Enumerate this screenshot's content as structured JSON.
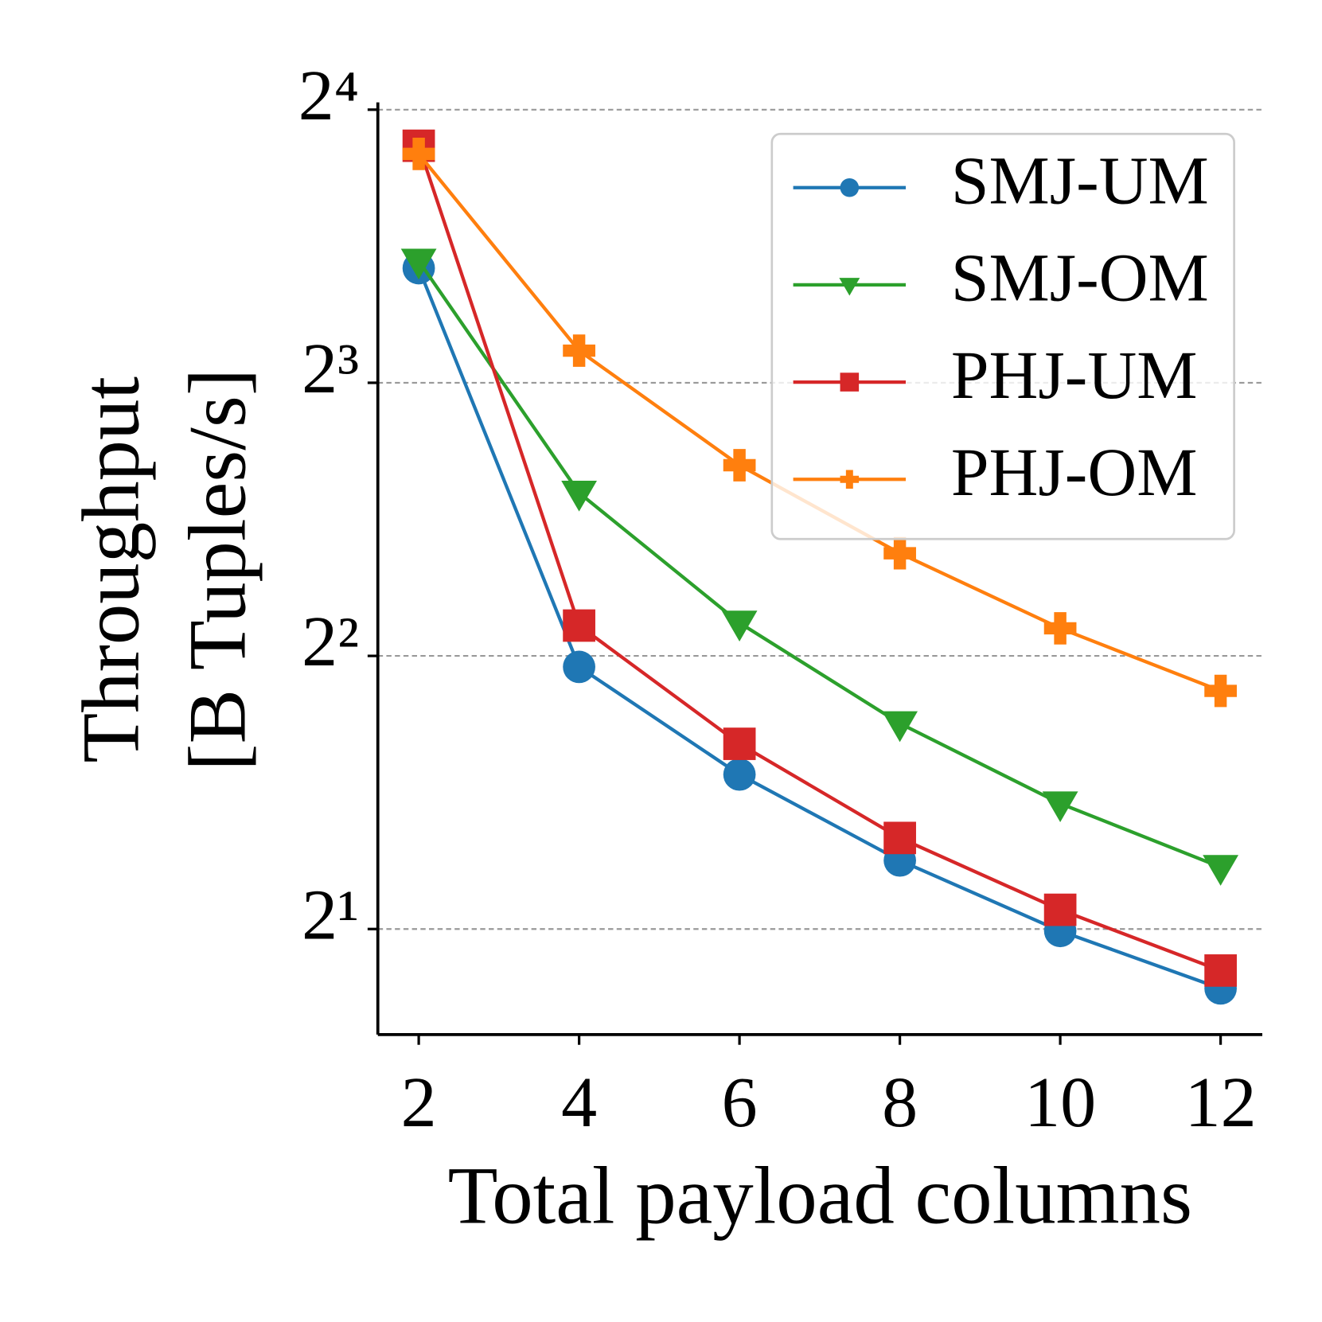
{
  "chart_data": {
    "type": "line",
    "x_label": "Total payload columns",
    "y_label": [
      "Throughput",
      "[B Tuples/s]"
    ],
    "x": [
      2,
      4,
      6,
      8,
      10,
      12
    ],
    "xlim": [
      1.49,
      12.52
    ],
    "xticks": [
      2,
      4,
      6,
      8,
      10,
      12
    ],
    "ylim": [
      1.53,
      16.3
    ],
    "yticks": [
      {
        "value": 2,
        "label": "2¹"
      },
      {
        "value": 4,
        "label": "2²"
      },
      {
        "value": 8,
        "label": "2³"
      },
      {
        "value": 16,
        "label": "2⁴"
      }
    ],
    "log_y": true,
    "log_base": 2,
    "grid": true,
    "legend": "upper right",
    "series": [
      {
        "name": "SMJ-UM",
        "color": "#1f77b4",
        "marker": "circle",
        "values": [
          10.7,
          3.89,
          2.96,
          2.38,
          1.99,
          1.72
        ]
      },
      {
        "name": "SMJ-OM",
        "color": "#2ca02c",
        "marker": "triangle-down",
        "values": [
          10.9,
          6.05,
          4.35,
          3.37,
          2.75,
          2.34
        ]
      },
      {
        "name": "PHJ-UM",
        "color": "#d62728",
        "marker": "square",
        "values": [
          14.6,
          4.32,
          3.2,
          2.52,
          2.1,
          1.8
        ]
      },
      {
        "name": "PHJ-OM",
        "color": "#ff7f0e",
        "marker": "plus",
        "values": [
          14.3,
          8.68,
          6.49,
          5.19,
          4.29,
          3.66
        ]
      }
    ]
  }
}
